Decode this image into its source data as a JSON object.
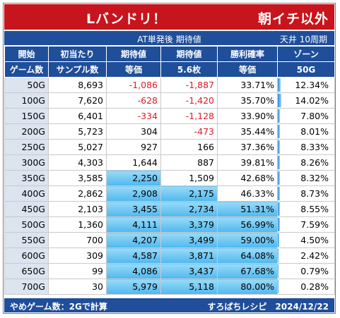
{
  "title": {
    "left": "Lバンドリ！",
    "right": "朝イチ以外"
  },
  "subhead": {
    "center": "AT単発後 期待値",
    "right": "天井 10周期"
  },
  "columns": [
    {
      "line1": "開始",
      "line2": "ゲーム数"
    },
    {
      "line1": "初当たり",
      "line2": "サンプル数"
    },
    {
      "line1": "期待値",
      "line2": "等価"
    },
    {
      "line1": "期待値",
      "line2": "5.6枚"
    },
    {
      "line1": "勝利確率",
      "line2": "等価"
    },
    {
      "line1": "ゾーン",
      "line2": "50G"
    }
  ],
  "rows": [
    {
      "start": "50G",
      "samples": "8,693",
      "ev_equal": "-1,086",
      "ev_56": "-1,887",
      "win_rate": "33.71%",
      "zone": "12.34%",
      "zone_value": 0.1234,
      "ev_equal_highlight": false,
      "ev_56_highlight": false,
      "win_rate_highlight": false
    },
    {
      "start": "100G",
      "samples": "7,620",
      "ev_equal": "-628",
      "ev_56": "-1,420",
      "win_rate": "35.70%",
      "zone": "14.02%",
      "zone_value": 0.1402,
      "ev_equal_highlight": false,
      "ev_56_highlight": false,
      "win_rate_highlight": false
    },
    {
      "start": "150G",
      "samples": "6,401",
      "ev_equal": "-334",
      "ev_56": "-1,128",
      "win_rate": "33.90%",
      "zone": "7.80%",
      "zone_value": 0.078,
      "ev_equal_highlight": false,
      "ev_56_highlight": false,
      "win_rate_highlight": false
    },
    {
      "start": "200G",
      "samples": "5,723",
      "ev_equal": "304",
      "ev_56": "-473",
      "win_rate": "35.44%",
      "zone": "8.01%",
      "zone_value": 0.0801,
      "ev_equal_highlight": false,
      "ev_56_highlight": false,
      "win_rate_highlight": false
    },
    {
      "start": "250G",
      "samples": "5,027",
      "ev_equal": "927",
      "ev_56": "166",
      "win_rate": "37.36%",
      "zone": "8.33%",
      "zone_value": 0.0833,
      "ev_equal_highlight": false,
      "ev_56_highlight": false,
      "win_rate_highlight": false
    },
    {
      "start": "300G",
      "samples": "4,303",
      "ev_equal": "1,644",
      "ev_56": "887",
      "win_rate": "39.81%",
      "zone": "8.26%",
      "zone_value": 0.0826,
      "ev_equal_highlight": false,
      "ev_56_highlight": false,
      "win_rate_highlight": false
    },
    {
      "start": "350G",
      "samples": "3,585",
      "ev_equal": "2,250",
      "ev_56": "1,509",
      "win_rate": "42.68%",
      "zone": "8.32%",
      "zone_value": 0.0832,
      "ev_equal_highlight": true,
      "ev_56_highlight": false,
      "win_rate_highlight": false
    },
    {
      "start": "400G",
      "samples": "2,862",
      "ev_equal": "2,908",
      "ev_56": "2,175",
      "win_rate": "46.33%",
      "zone": "8.73%",
      "zone_value": 0.0873,
      "ev_equal_highlight": true,
      "ev_56_highlight": true,
      "win_rate_highlight": false
    },
    {
      "start": "450G",
      "samples": "2,103",
      "ev_equal": "3,455",
      "ev_56": "2,734",
      "win_rate": "51.31%",
      "zone": "8.55%",
      "zone_value": 0.0855,
      "ev_equal_highlight": true,
      "ev_56_highlight": true,
      "win_rate_highlight": true
    },
    {
      "start": "500G",
      "samples": "1,360",
      "ev_equal": "4,111",
      "ev_56": "3,379",
      "win_rate": "56.99%",
      "zone": "7.59%",
      "zone_value": 0.0759,
      "ev_equal_highlight": true,
      "ev_56_highlight": true,
      "win_rate_highlight": true
    },
    {
      "start": "550G",
      "samples": "700",
      "ev_equal": "4,207",
      "ev_56": "3,499",
      "win_rate": "59.00%",
      "zone": "4.50%",
      "zone_value": 0.045,
      "ev_equal_highlight": true,
      "ev_56_highlight": true,
      "win_rate_highlight": true
    },
    {
      "start": "600G",
      "samples": "309",
      "ev_equal": "4,587",
      "ev_56": "3,871",
      "win_rate": "64.08%",
      "zone": "2.42%",
      "zone_value": 0.0242,
      "ev_equal_highlight": true,
      "ev_56_highlight": true,
      "win_rate_highlight": true
    },
    {
      "start": "650G",
      "samples": "99",
      "ev_equal": "4,086",
      "ev_56": "3,437",
      "win_rate": "67.68%",
      "zone": "0.79%",
      "zone_value": 0.0079,
      "ev_equal_highlight": true,
      "ev_56_highlight": true,
      "win_rate_highlight": true
    },
    {
      "start": "700G",
      "samples": "30",
      "ev_equal": "5,979",
      "ev_56": "5,118",
      "win_rate": "80.00%",
      "zone": "0.28%",
      "zone_value": 0.0028,
      "ev_equal_highlight": true,
      "ev_56_highlight": true,
      "win_rate_highlight": true
    }
  ],
  "footer": {
    "left": "やめゲーム数：2Gで計算",
    "right": "すろぱちレシピ　2024/12/22"
  },
  "colors": {
    "title_red": "#c8141c",
    "header_blue": "#1f4e9a",
    "negative_red": "#e01b24",
    "highlight_blue": "#4fb8ee",
    "zone_bar_blue": "#2e8ae6",
    "stripe_gray": "#dce4f0"
  }
}
